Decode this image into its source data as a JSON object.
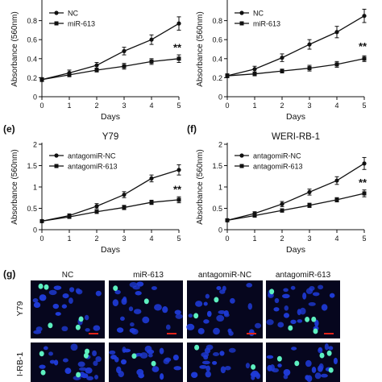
{
  "chart_data": [
    {
      "type": "line",
      "panel_label": "",
      "title": "",
      "xlabel": "Days",
      "ylabel": "Absorbance (560nm)",
      "x": [
        0,
        1,
        2,
        3,
        4,
        5
      ],
      "xlim": [
        0,
        5
      ],
      "ylim": [
        0,
        1.0
      ],
      "yticks": [
        "0",
        "0.2",
        "0.4",
        "0.6",
        "0.8"
      ],
      "yticks_values": [
        0,
        0.2,
        0.4,
        0.6,
        0.8
      ],
      "xticks": [
        "0",
        "1",
        "2",
        "3",
        "4",
        "5"
      ],
      "legend_position": "top-left",
      "annotation": "**",
      "annotation_at": [
        5,
        0.48
      ],
      "series": [
        {
          "name": "NC",
          "marker": "circle",
          "values": [
            0.18,
            0.25,
            0.33,
            0.48,
            0.6,
            0.77
          ],
          "errors": [
            0.02,
            0.03,
            0.03,
            0.04,
            0.05,
            0.07
          ]
        },
        {
          "name": "miR-613",
          "marker": "square",
          "values": [
            0.18,
            0.23,
            0.28,
            0.32,
            0.37,
            0.4
          ],
          "errors": [
            0.02,
            0.02,
            0.02,
            0.03,
            0.03,
            0.04
          ]
        }
      ]
    },
    {
      "type": "line",
      "panel_label": "",
      "title": "",
      "xlabel": "Days",
      "ylabel": "Absorbance (560nm)",
      "x": [
        0,
        1,
        2,
        3,
        4,
        5
      ],
      "xlim": [
        0,
        5
      ],
      "ylim": [
        0,
        1.0
      ],
      "yticks": [
        "0",
        "0.2",
        "0.4",
        "0.6",
        "0.8"
      ],
      "yticks_values": [
        0,
        0.2,
        0.4,
        0.6,
        0.8
      ],
      "xticks": [
        "0",
        "1",
        "2",
        "3",
        "4",
        "5"
      ],
      "legend_position": "top-left",
      "annotation": "**",
      "annotation_at": [
        5,
        0.49
      ],
      "series": [
        {
          "name": "NC",
          "marker": "circle",
          "values": [
            0.22,
            0.29,
            0.41,
            0.55,
            0.68,
            0.85
          ],
          "errors": [
            0.02,
            0.03,
            0.04,
            0.05,
            0.06,
            0.07
          ]
        },
        {
          "name": "miR-613",
          "marker": "square",
          "values": [
            0.22,
            0.24,
            0.27,
            0.3,
            0.34,
            0.4
          ],
          "errors": [
            0.02,
            0.02,
            0.02,
            0.03,
            0.03,
            0.03
          ]
        }
      ]
    },
    {
      "type": "line",
      "panel_label": "(e)",
      "title": "Y79",
      "xlabel": "Days",
      "ylabel": "Absorbance (560nm)",
      "x": [
        0,
        1,
        2,
        3,
        4,
        5
      ],
      "xlim": [
        0,
        5
      ],
      "ylim": [
        0,
        2.0
      ],
      "yticks": [
        "0",
        "0.5",
        "1",
        "1.5",
        "2"
      ],
      "yticks_values": [
        0,
        0.5,
        1.0,
        1.5,
        2.0
      ],
      "xticks": [
        "0",
        "1",
        "2",
        "3",
        "4",
        "5"
      ],
      "legend_position": "top-left",
      "annotation": "**",
      "annotation_at": [
        5,
        0.86
      ],
      "series": [
        {
          "name": "antagomiR-NC",
          "marker": "circle",
          "values": [
            0.2,
            0.33,
            0.55,
            0.82,
            1.2,
            1.4
          ],
          "errors": [
            0.03,
            0.04,
            0.06,
            0.07,
            0.08,
            0.12
          ]
        },
        {
          "name": "antagomiR-613",
          "marker": "square",
          "values": [
            0.2,
            0.3,
            0.42,
            0.52,
            0.64,
            0.7
          ],
          "errors": [
            0.02,
            0.03,
            0.04,
            0.05,
            0.05,
            0.07
          ]
        }
      ]
    },
    {
      "type": "line",
      "panel_label": "(f)",
      "title": "WERI-RB-1",
      "xlabel": "Days",
      "ylabel": "Absorbance (560nm)",
      "x": [
        0,
        1,
        2,
        3,
        4,
        5
      ],
      "xlim": [
        0,
        5
      ],
      "ylim": [
        0,
        2.0
      ],
      "yticks": [
        "0",
        "0.5",
        "1",
        "1.5",
        "2"
      ],
      "yticks_values": [
        0,
        0.5,
        1.0,
        1.5,
        2.0
      ],
      "xticks": [
        "0",
        "1",
        "2",
        "3",
        "4",
        "5"
      ],
      "legend_position": "top-left",
      "annotation": "**",
      "annotation_at": [
        5,
        1.02
      ],
      "series": [
        {
          "name": "antagomiR-NC",
          "marker": "circle",
          "values": [
            0.22,
            0.38,
            0.6,
            0.88,
            1.15,
            1.55
          ],
          "errors": [
            0.03,
            0.04,
            0.06,
            0.07,
            0.09,
            0.14
          ]
        },
        {
          "name": "antagomiR-613",
          "marker": "square",
          "values": [
            0.22,
            0.33,
            0.45,
            0.57,
            0.7,
            0.85
          ],
          "errors": [
            0.02,
            0.03,
            0.04,
            0.05,
            0.05,
            0.08
          ]
        }
      ]
    }
  ],
  "micrograph": {
    "panel_label": "(g)",
    "columns": [
      "NC",
      "miR-613",
      "antagomiR-NC",
      "antagomiR-613"
    ],
    "rows": [
      "Y79",
      "I-RB-1"
    ],
    "colors": {
      "background": "#06061e",
      "nucleus": "#1f3bd8",
      "positive": "#5df0c0",
      "scale_bar": "#e0241a"
    }
  }
}
